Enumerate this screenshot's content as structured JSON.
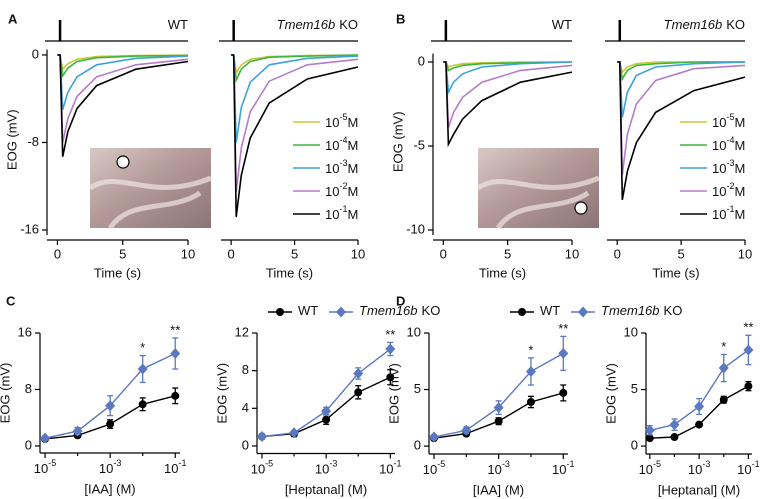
{
  "chart_data": [
    {
      "type": "line",
      "panel_label": "A",
      "title": "WT",
      "xlabel": "Time (s)",
      "ylabel": "EOG (mV)",
      "x": [
        0,
        0.2,
        0.4,
        0.8,
        1.5,
        3,
        6,
        10
      ],
      "xlim": [
        -0.8,
        10
      ],
      "xticks": [
        0,
        5,
        10
      ],
      "ylim": [
        -16,
        0.5
      ],
      "yticks": [
        -16,
        -8,
        0
      ],
      "series": [
        {
          "color": "#c9c93a",
          "values": [
            0,
            0,
            -1.3,
            -0.8,
            -0.4,
            -0.15,
            -0.05,
            0
          ]
        },
        {
          "color": "#3db53d",
          "values": [
            0,
            0,
            -1.9,
            -1.2,
            -0.6,
            -0.25,
            -0.1,
            -0.05
          ]
        },
        {
          "color": "#3ea3d4",
          "values": [
            0,
            0,
            -5.0,
            -3.4,
            -2.0,
            -0.9,
            -0.3,
            -0.1
          ]
        },
        {
          "color": "#b57cc9",
          "values": [
            0,
            0,
            -8.0,
            -5.8,
            -3.8,
            -2.0,
            -0.9,
            -0.4
          ]
        },
        {
          "color": "#000000",
          "values": [
            0,
            0,
            -9.3,
            -7.0,
            -4.9,
            -2.8,
            -1.3,
            -0.6
          ]
        }
      ]
    },
    {
      "type": "line",
      "title_italic": "Tmem16b",
      "title": "KO",
      "xlabel": "Time (s)",
      "x": [
        0,
        0.2,
        0.4,
        0.8,
        1.5,
        3,
        6,
        10
      ],
      "xlim": [
        -0.8,
        10
      ],
      "xticks": [
        0,
        5,
        10
      ],
      "ylim": [
        -16,
        0.5
      ],
      "series": [
        {
          "name": {
            "base": "10",
            "exp": "-5",
            "unit": "M"
          },
          "color": "#c9c93a",
          "values": [
            0,
            0,
            -1.6,
            -0.9,
            -0.4,
            -0.15,
            -0.05,
            0
          ]
        },
        {
          "name": {
            "base": "10",
            "exp": "-4",
            "unit": "M"
          },
          "color": "#3db53d",
          "values": [
            0,
            0,
            -2.3,
            -1.3,
            -0.6,
            -0.2,
            -0.1,
            0
          ]
        },
        {
          "name": {
            "base": "10",
            "exp": "-3",
            "unit": "M"
          },
          "color": "#3ea3d4",
          "values": [
            0,
            0,
            -8.0,
            -4.8,
            -2.5,
            -0.9,
            -0.3,
            -0.1
          ]
        },
        {
          "name": {
            "base": "10",
            "exp": "-2",
            "unit": "M"
          },
          "color": "#b57cc9",
          "values": [
            0,
            0,
            -12.5,
            -8.5,
            -5.2,
            -2.4,
            -0.9,
            -0.4
          ]
        },
        {
          "name": {
            "base": "10",
            "exp": "-1",
            "unit": "M"
          },
          "color": "#000000",
          "values": [
            0,
            0,
            -14.8,
            -11.0,
            -7.6,
            -4.4,
            -2.2,
            -1.1
          ]
        }
      ]
    },
    {
      "type": "line",
      "panel_label": "B",
      "title": "WT",
      "xlabel": "Time (s)",
      "ylabel": "EOG (mV)",
      "x": [
        0,
        0.2,
        0.4,
        0.8,
        1.5,
        3,
        6,
        10
      ],
      "xlim": [
        -0.8,
        10
      ],
      "xticks": [
        0,
        5,
        10
      ],
      "ylim": [
        -10,
        0.5
      ],
      "yticks": [
        -10,
        -5,
        0
      ],
      "series": [
        {
          "color": "#c9c93a",
          "values": [
            0,
            0,
            -0.3,
            -0.2,
            -0.1,
            -0.05,
            0,
            0
          ]
        },
        {
          "color": "#3db53d",
          "values": [
            0,
            0,
            -0.5,
            -0.35,
            -0.2,
            -0.1,
            -0.05,
            0
          ]
        },
        {
          "color": "#3ea3d4",
          "values": [
            0,
            0,
            -1.8,
            -1.2,
            -0.7,
            -0.3,
            -0.1,
            0
          ]
        },
        {
          "color": "#b57cc9",
          "values": [
            0,
            0,
            -3.9,
            -3.0,
            -2.1,
            -1.2,
            -0.5,
            -0.2
          ]
        },
        {
          "color": "#000000",
          "values": [
            0,
            0,
            -4.9,
            -4.3,
            -3.4,
            -2.3,
            -1.2,
            -0.6
          ]
        }
      ]
    },
    {
      "type": "line",
      "title_italic": "Tmem16b",
      "title": "KO",
      "xlabel": "Time (s)",
      "x": [
        0,
        0.2,
        0.4,
        0.8,
        1.5,
        3,
        6,
        10
      ],
      "xlim": [
        -0.8,
        10
      ],
      "xticks": [
        0,
        5,
        10
      ],
      "ylim": [
        -10,
        0.5
      ],
      "series": [
        {
          "name": {
            "base": "10",
            "exp": "-5",
            "unit": "M"
          },
          "color": "#c9c93a",
          "values": [
            0,
            0,
            -0.6,
            -0.3,
            -0.1,
            0,
            0,
            0
          ]
        },
        {
          "name": {
            "base": "10",
            "exp": "-4",
            "unit": "M"
          },
          "color": "#3db53d",
          "values": [
            0,
            0,
            -1.0,
            -0.5,
            -0.2,
            -0.1,
            0,
            0
          ]
        },
        {
          "name": {
            "base": "10",
            "exp": "-3",
            "unit": "M"
          },
          "color": "#3ea3d4",
          "values": [
            0,
            0,
            -3.3,
            -1.8,
            -0.8,
            -0.3,
            -0.1,
            0
          ]
        },
        {
          "name": {
            "base": "10",
            "exp": "-2",
            "unit": "M"
          },
          "color": "#b57cc9",
          "values": [
            0,
            0,
            -6.7,
            -4.3,
            -2.5,
            -1.1,
            -0.4,
            -0.2
          ]
        },
        {
          "name": {
            "base": "10",
            "exp": "-1",
            "unit": "M"
          },
          "color": "#000000",
          "values": [
            0,
            0,
            -8.2,
            -6.5,
            -4.8,
            -3.0,
            -1.7,
            -0.9
          ]
        }
      ]
    },
    {
      "type": "line",
      "panel_label": "C",
      "xscale": "log",
      "xlabel": "[IAA] (M)",
      "ylabel": "EOG (mV)",
      "x": [
        1e-05,
        0.0001,
        0.001,
        0.01,
        0.1
      ],
      "xlim": [
        7e-06,
        0.14
      ],
      "xticks": [
        {
          "value": 1e-05,
          "label": {
            "base": "10",
            "exp": "-5"
          }
        },
        {
          "value": 0.001,
          "label": {
            "base": "10",
            "exp": "-3"
          }
        },
        {
          "value": 0.1,
          "label": {
            "base": "10",
            "exp": "-1"
          }
        }
      ],
      "minor_xticks": [
        0.0001,
        0.01
      ],
      "ylim": [
        -1,
        16
      ],
      "yticks": [
        0,
        8,
        16
      ],
      "series": [
        {
          "name": {
            "text": "WT"
          },
          "color": "#000000",
          "marker": "circle",
          "values": [
            1.0,
            1.5,
            3.1,
            5.9,
            7.1
          ],
          "errors": [
            0.3,
            0.3,
            0.6,
            0.9,
            1.1
          ]
        },
        {
          "name": {
            "italic": "Tmem16b",
            "text": "KO"
          },
          "color": "#5b79c0",
          "marker": "diamond",
          "values": [
            1.1,
            2.1,
            5.7,
            10.9,
            13.1
          ],
          "errors": [
            0.3,
            0.5,
            1.4,
            1.9,
            2.2
          ]
        }
      ],
      "annotations": [
        {
          "x": 0.01,
          "text": "*"
        },
        {
          "x": 0.1,
          "text": "**"
        }
      ]
    },
    {
      "type": "line",
      "xscale": "log",
      "xlabel": "[Heptanal] (M)",
      "ylabel": "EOG (mV)",
      "x": [
        1e-05,
        0.0001,
        0.001,
        0.01,
        0.1
      ],
      "xlim": [
        7e-06,
        0.14
      ],
      "xticks": [
        {
          "value": 1e-05,
          "label": {
            "base": "10",
            "exp": "-5"
          }
        },
        {
          "value": 0.001,
          "label": {
            "base": "10",
            "exp": "-3"
          }
        },
        {
          "value": 0.1,
          "label": {
            "base": "10",
            "exp": "-1"
          }
        }
      ],
      "minor_xticks": [
        0.0001,
        0.01
      ],
      "ylim": [
        -0.8,
        12
      ],
      "yticks": [
        0,
        4,
        8,
        12
      ],
      "series": [
        {
          "color": "#000000",
          "marker": "circle",
          "values": [
            1.0,
            1.3,
            2.8,
            5.7,
            7.3
          ],
          "errors": [
            0.2,
            0.3,
            0.5,
            0.7,
            0.8
          ]
        },
        {
          "color": "#5b79c0",
          "marker": "diamond",
          "values": [
            1.0,
            1.4,
            3.7,
            7.7,
            10.3
          ],
          "errors": [
            0.2,
            0.2,
            0.4,
            0.6,
            0.7
          ]
        }
      ],
      "annotations": [
        {
          "x": 0.1,
          "text": "**"
        }
      ]
    },
    {
      "type": "line",
      "panel_label": "D",
      "xscale": "log",
      "xlabel": "[IAA] (M)",
      "ylabel": "EOG (mV)",
      "x": [
        1e-05,
        0.0001,
        0.001,
        0.01,
        0.1
      ],
      "xlim": [
        7e-06,
        0.14
      ],
      "xticks": [
        {
          "value": 1e-05,
          "label": {
            "base": "10",
            "exp": "-5"
          }
        },
        {
          "value": 0.001,
          "label": {
            "base": "10",
            "exp": "-3"
          }
        },
        {
          "value": 0.1,
          "label": {
            "base": "10",
            "exp": "-1"
          }
        }
      ],
      "minor_xticks": [
        0.0001,
        0.01
      ],
      "ylim": [
        -0.7,
        10
      ],
      "yticks": [
        0,
        5,
        10
      ],
      "series": [
        {
          "name": {
            "text": "WT"
          },
          "color": "#000000",
          "marker": "circle",
          "values": [
            0.7,
            1.1,
            2.2,
            3.9,
            4.7
          ],
          "errors": [
            0.2,
            0.2,
            0.3,
            0.5,
            0.7
          ]
        },
        {
          "name": {
            "italic": "Tmem16b",
            "text": "KO"
          },
          "color": "#5b79c0",
          "marker": "diamond",
          "values": [
            0.8,
            1.4,
            3.4,
            6.6,
            8.2
          ],
          "errors": [
            0.2,
            0.3,
            0.6,
            1.2,
            1.5
          ]
        }
      ],
      "annotations": [
        {
          "x": 0.01,
          "text": "*"
        },
        {
          "x": 0.1,
          "text": "**"
        }
      ]
    },
    {
      "type": "line",
      "xscale": "log",
      "xlabel": "[Heptanal] (M)",
      "ylabel": "EOG (mV)",
      "x": [
        1e-05,
        0.0001,
        0.001,
        0.01,
        0.1
      ],
      "xlim": [
        7e-06,
        0.14
      ],
      "xticks": [
        {
          "value": 1e-05,
          "label": {
            "base": "10",
            "exp": "-5"
          }
        },
        {
          "value": 0.001,
          "label": {
            "base": "10",
            "exp": "-3"
          }
        },
        {
          "value": 0.1,
          "label": {
            "base": "10",
            "exp": "-1"
          }
        }
      ],
      "minor_xticks": [
        0.0001,
        0.01
      ],
      "ylim": [
        -0.7,
        10
      ],
      "yticks": [
        0,
        5,
        10
      ],
      "series": [
        {
          "color": "#000000",
          "marker": "circle",
          "values": [
            0.7,
            0.8,
            1.9,
            4.1,
            5.3
          ],
          "errors": [
            0.1,
            0.1,
            0.2,
            0.3,
            0.4
          ]
        },
        {
          "color": "#5b79c0",
          "marker": "diamond",
          "values": [
            1.4,
            1.9,
            3.5,
            6.9,
            8.5
          ],
          "errors": [
            0.4,
            0.5,
            0.7,
            1.2,
            1.3
          ]
        }
      ],
      "annotations": [
        {
          "x": 0.01,
          "text": "*"
        },
        {
          "x": 0.1,
          "text": "**"
        }
      ]
    }
  ]
}
